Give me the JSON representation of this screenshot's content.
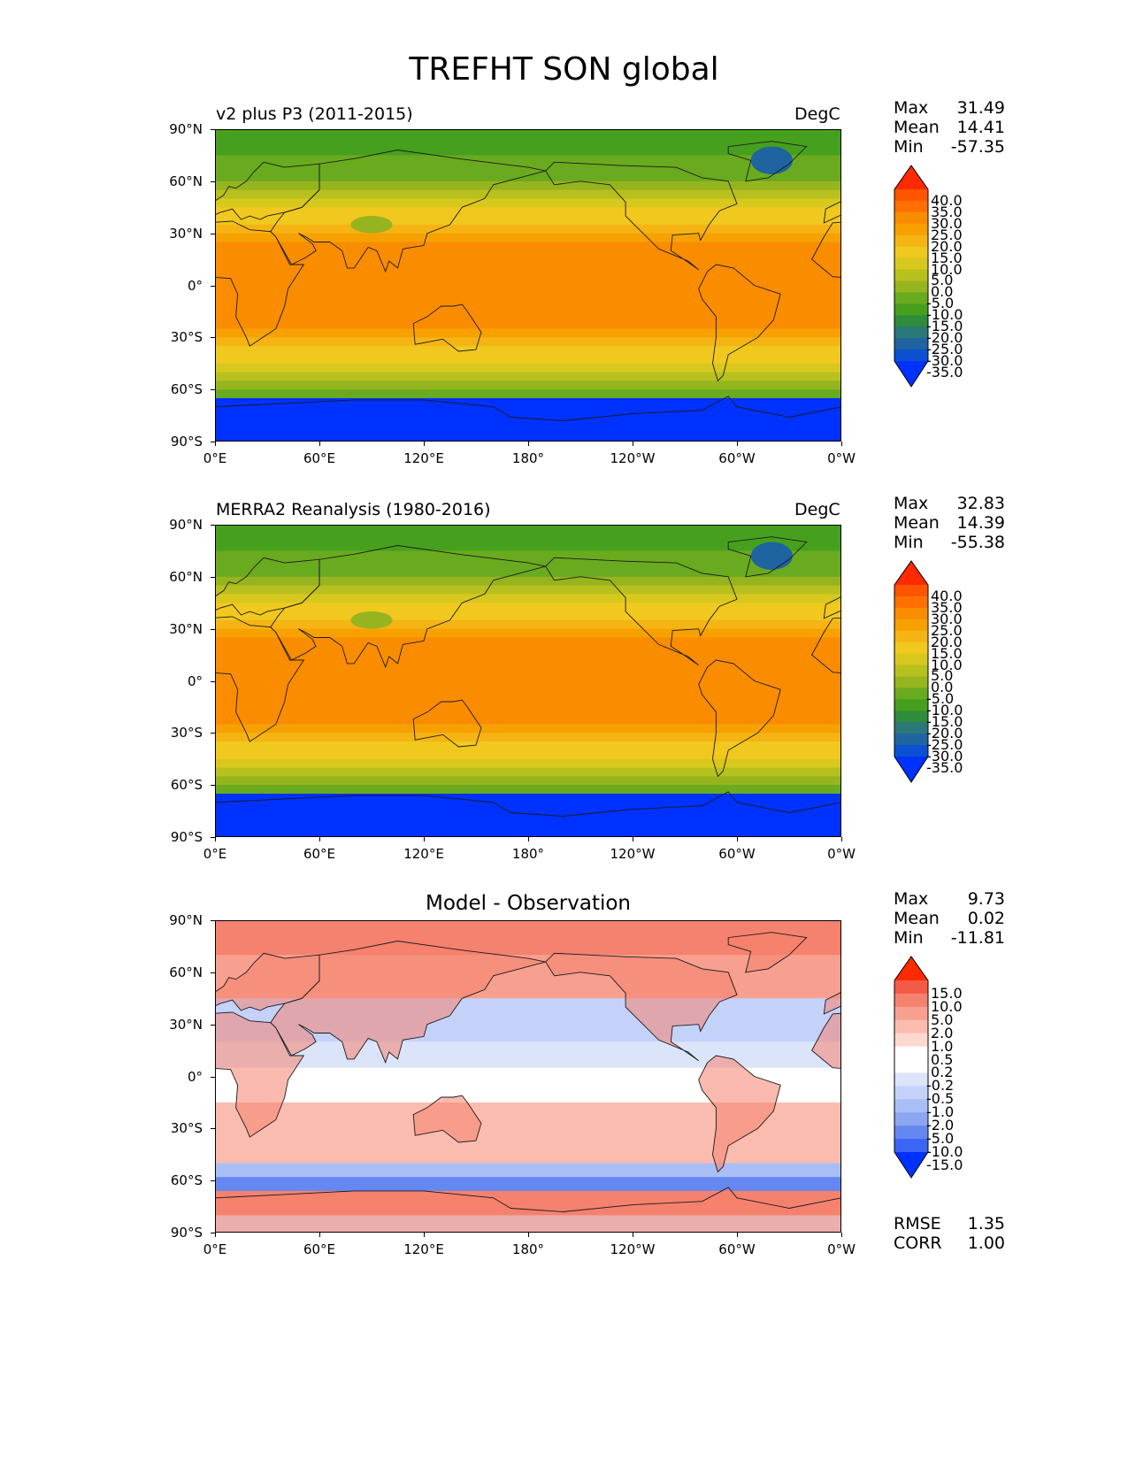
{
  "title": "TREFHT SON global",
  "axes": {
    "lat_ticks": [
      "90°N",
      "60°N",
      "30°N",
      "0°",
      "30°S",
      "60°S",
      "90°S"
    ],
    "lon_ticks": [
      "0°E",
      "60°E",
      "120°E",
      "180°",
      "120°W",
      "60°W",
      "0°W"
    ]
  },
  "panels": [
    {
      "left_label": "v2 plus P3 (2011-2015)",
      "right_label": "DegC",
      "center_label": "",
      "stats": [
        {
          "name": "Max",
          "value": "31.49"
        },
        {
          "name": "Mean",
          "value": "14.41"
        },
        {
          "name": "Min",
          "value": "-57.35"
        }
      ],
      "colorbar": {
        "labels": [
          "40.0",
          "35.0",
          "30.0",
          "25.0",
          "20.0",
          "15.0",
          "10.0",
          "5.0",
          "0.0",
          "-5.0",
          "-10.0",
          "-15.0",
          "-20.0",
          "-25.0",
          "-30.0",
          "-35.0"
        ],
        "colors": [
          "#ff2a00",
          "#ff5500",
          "#ff7000",
          "#fa8c00",
          "#f6a100",
          "#f5b414",
          "#f0c81e",
          "#d8c81e",
          "#b8c01e",
          "#96b41e",
          "#6aaa1e",
          "#46a01e",
          "#2e8c3c",
          "#2a7878",
          "#1e64a0",
          "#0a50d0",
          "#0032ff"
        ]
      },
      "map_type": "temperature"
    },
    {
      "left_label": "MERRA2 Reanalysis (1980-2016)",
      "right_label": "DegC",
      "center_label": "",
      "stats": [
        {
          "name": "Max",
          "value": "32.83"
        },
        {
          "name": "Mean",
          "value": "14.39"
        },
        {
          "name": "Min",
          "value": "-55.38"
        }
      ],
      "colorbar": {
        "labels": [
          "40.0",
          "35.0",
          "30.0",
          "25.0",
          "20.0",
          "15.0",
          "10.0",
          "5.0",
          "0.0",
          "-5.0",
          "-10.0",
          "-15.0",
          "-20.0",
          "-25.0",
          "-30.0",
          "-35.0"
        ],
        "colors": [
          "#ff2a00",
          "#ff5500",
          "#ff7000",
          "#fa8c00",
          "#f6a100",
          "#f5b414",
          "#f0c81e",
          "#d8c81e",
          "#b8c01e",
          "#96b41e",
          "#6aaa1e",
          "#46a01e",
          "#2e8c3c",
          "#2a7878",
          "#1e64a0",
          "#0a50d0",
          "#0032ff"
        ]
      },
      "map_type": "temperature"
    },
    {
      "left_label": "",
      "right_label": "",
      "center_label": "Model - Observation",
      "stats": [
        {
          "name": "Max",
          "value": "9.73"
        },
        {
          "name": "Mean",
          "value": "0.02"
        },
        {
          "name": "Min",
          "value": "-11.81"
        }
      ],
      "extra_stats": [
        {
          "name": "RMSE",
          "value": "1.35"
        },
        {
          "name": "CORR",
          "value": "1.00"
        }
      ],
      "colorbar": {
        "labels": [
          "15.0",
          "10.0",
          "5.0",
          "2.0",
          "1.0",
          "0.5",
          "0.2",
          "-0.2",
          "-0.5",
          "-1.0",
          "-2.0",
          "-5.0",
          "-10.0",
          "-15.0"
        ],
        "colors": [
          "#ff2a00",
          "#f55a46",
          "#f5826e",
          "#f8a090",
          "#fbbcb0",
          "#fdd8d0",
          "#ffffff",
          "#ffffff",
          "#dce4fa",
          "#c4d2fa",
          "#a8bef5",
          "#8ca6f0",
          "#6488f0",
          "#3c64f5",
          "#0032ff"
        ]
      },
      "map_type": "difference"
    }
  ]
}
